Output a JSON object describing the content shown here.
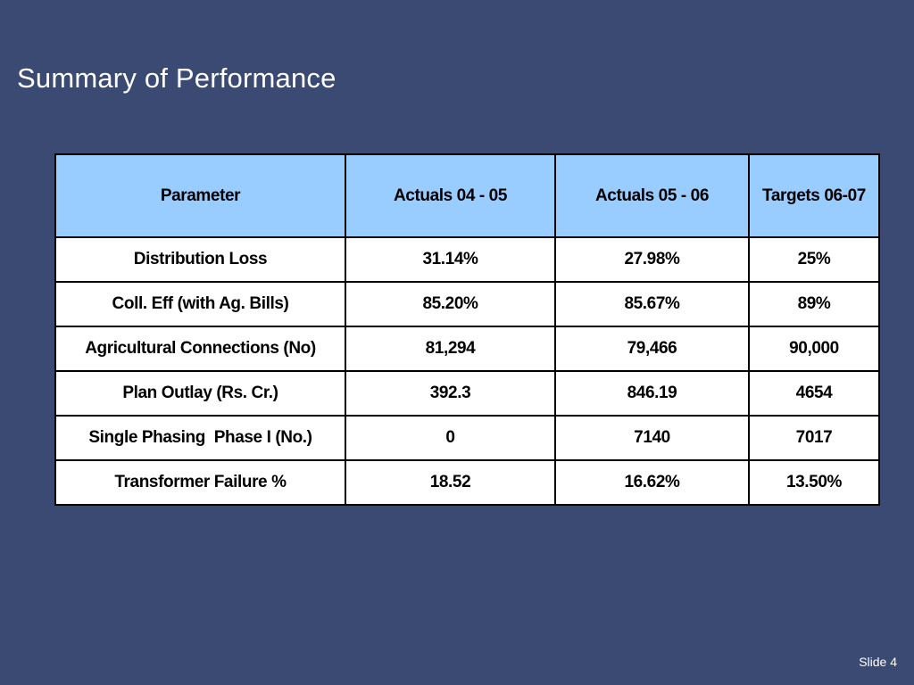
{
  "slide": {
    "title": "Summary of Performance",
    "number_label": "Slide 4"
  },
  "table": {
    "headers": [
      "Parameter",
      "Actuals 04 - 05",
      "Actuals 05 - 06",
      "Targets 06-07"
    ],
    "rows": [
      [
        "Distribution Loss",
        "31.14%",
        "27.98%",
        "25%"
      ],
      [
        "Coll. Eff (with Ag. Bills)",
        "85.20%",
        "85.67%",
        "89%"
      ],
      [
        "Agricultural Connections (No)",
        "81,294",
        "79,466",
        "90,000"
      ],
      [
        "Plan Outlay (Rs. Cr.)",
        "392.3",
        "846.19",
        "4654"
      ],
      [
        "Single Phasing  Phase I (No.)",
        "0",
        "7140",
        "7017"
      ],
      [
        "Transformer Failure %",
        "18.52",
        "16.62%",
        "13.50%"
      ]
    ]
  },
  "colors": {
    "background": "#3a4a72",
    "header_fill": "#99ccff",
    "cell_fill": "#ffffff",
    "border": "#000000"
  }
}
